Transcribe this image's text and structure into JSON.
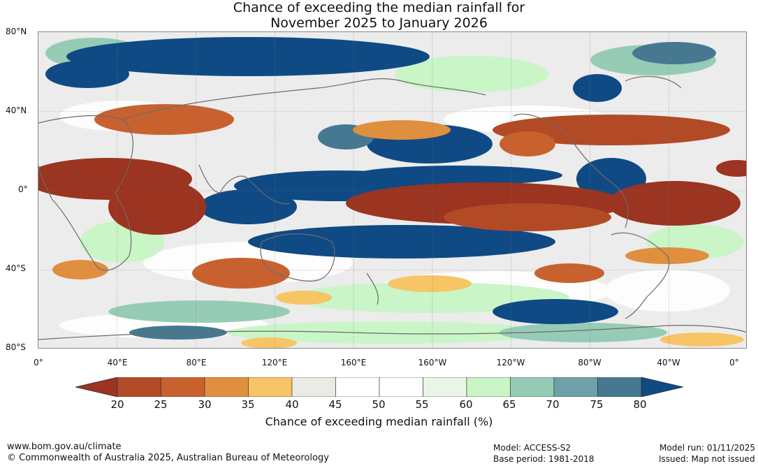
{
  "title": {
    "line1": "Chance of exceeding the median rainfall for",
    "line2": "November 2025 to January 2026"
  },
  "map": {
    "lat_labels": [
      "80°N",
      "40°N",
      "0°",
      "40°S",
      "80°S"
    ],
    "lon_labels": [
      "0°",
      "40°E",
      "80°E",
      "120°E",
      "160°E",
      "160°W",
      "120°W",
      "80°W",
      "40°W",
      "0°"
    ]
  },
  "legend": {
    "ticks": [
      "20",
      "25",
      "30",
      "35",
      "40",
      "45",
      "50",
      "55",
      "60",
      "65",
      "70",
      "75",
      "80"
    ],
    "title": "Chance of exceeding median rainfall (%)",
    "colors": [
      "#9b3420",
      "#b34a26",
      "#c9612f",
      "#e08f3f",
      "#f7c466",
      "#ebebe6",
      "#ffffff",
      "#ffffff",
      "#e9f6e6",
      "#c9f5c7",
      "#96ccb6",
      "#6ea1a8",
      "#467991",
      "#0f4a84"
    ]
  },
  "footer": {
    "website": "www.bom.gov.au/climate",
    "copyright": "© Commonwealth of Australia 2025, Australian Bureau of Meteorology",
    "model": "Model: ACCESS-S2",
    "base_period": "Base period: 1981-2018",
    "model_run": "Model run: 01/11/2025",
    "issued": "Issued: Map not issued"
  }
}
